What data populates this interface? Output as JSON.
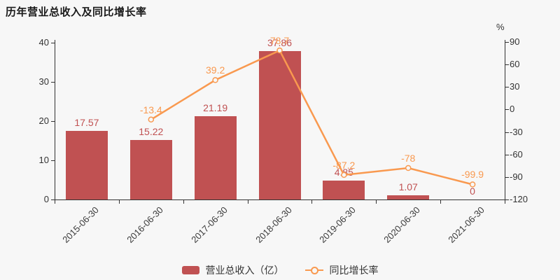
{
  "title": "历年营业总收入及同比增长率",
  "colors": {
    "background": "#f7f7f7",
    "axis": "#333333",
    "bar": "#c05152",
    "line": "#f9994f",
    "tick_text": "#333333",
    "x_label_text": "#3a3a3a"
  },
  "chart_data": {
    "type": "bar+line",
    "title": "历年营业总收入及同比增长率",
    "categories": [
      "2015-06-30",
      "2016-06-30",
      "2017-06-30",
      "2018-06-30",
      "2019-06-30",
      "2020-06-30",
      "2021-06-30"
    ],
    "series": [
      {
        "name": "营业总收入（亿）",
        "type": "bar",
        "axis": "left",
        "color": "#c05152",
        "values": [
          17.57,
          15.22,
          21.19,
          37.86,
          4.85,
          1.07,
          0
        ],
        "labels": [
          "17.57",
          "15.22",
          "21.19",
          "37.86",
          "4.85",
          "1.07",
          "0"
        ]
      },
      {
        "name": "同比增长率",
        "type": "line",
        "axis": "right",
        "color": "#f9994f",
        "values": [
          null,
          -13.4,
          39.2,
          78.7,
          -87.2,
          -78,
          -99.9
        ],
        "labels": [
          null,
          "-13.4",
          "39.2",
          "78.7",
          "-87.2",
          "-78",
          "-99.9"
        ]
      }
    ],
    "y_left": {
      "min": 0,
      "max": 40,
      "ticks": [
        "0",
        "10",
        "20",
        "30",
        "40"
      ],
      "tick_values": [
        0,
        10,
        20,
        30,
        40
      ]
    },
    "y_right": {
      "min": -120,
      "max": 90,
      "unit": "%",
      "ticks": [
        "90",
        "60",
        "30",
        "0",
        "-30",
        "-60",
        "-90",
        "-120"
      ],
      "tick_values": [
        90,
        60,
        30,
        0,
        -30,
        -60,
        -90,
        -120
      ]
    },
    "legend_position": "bottom",
    "grid": false
  }
}
